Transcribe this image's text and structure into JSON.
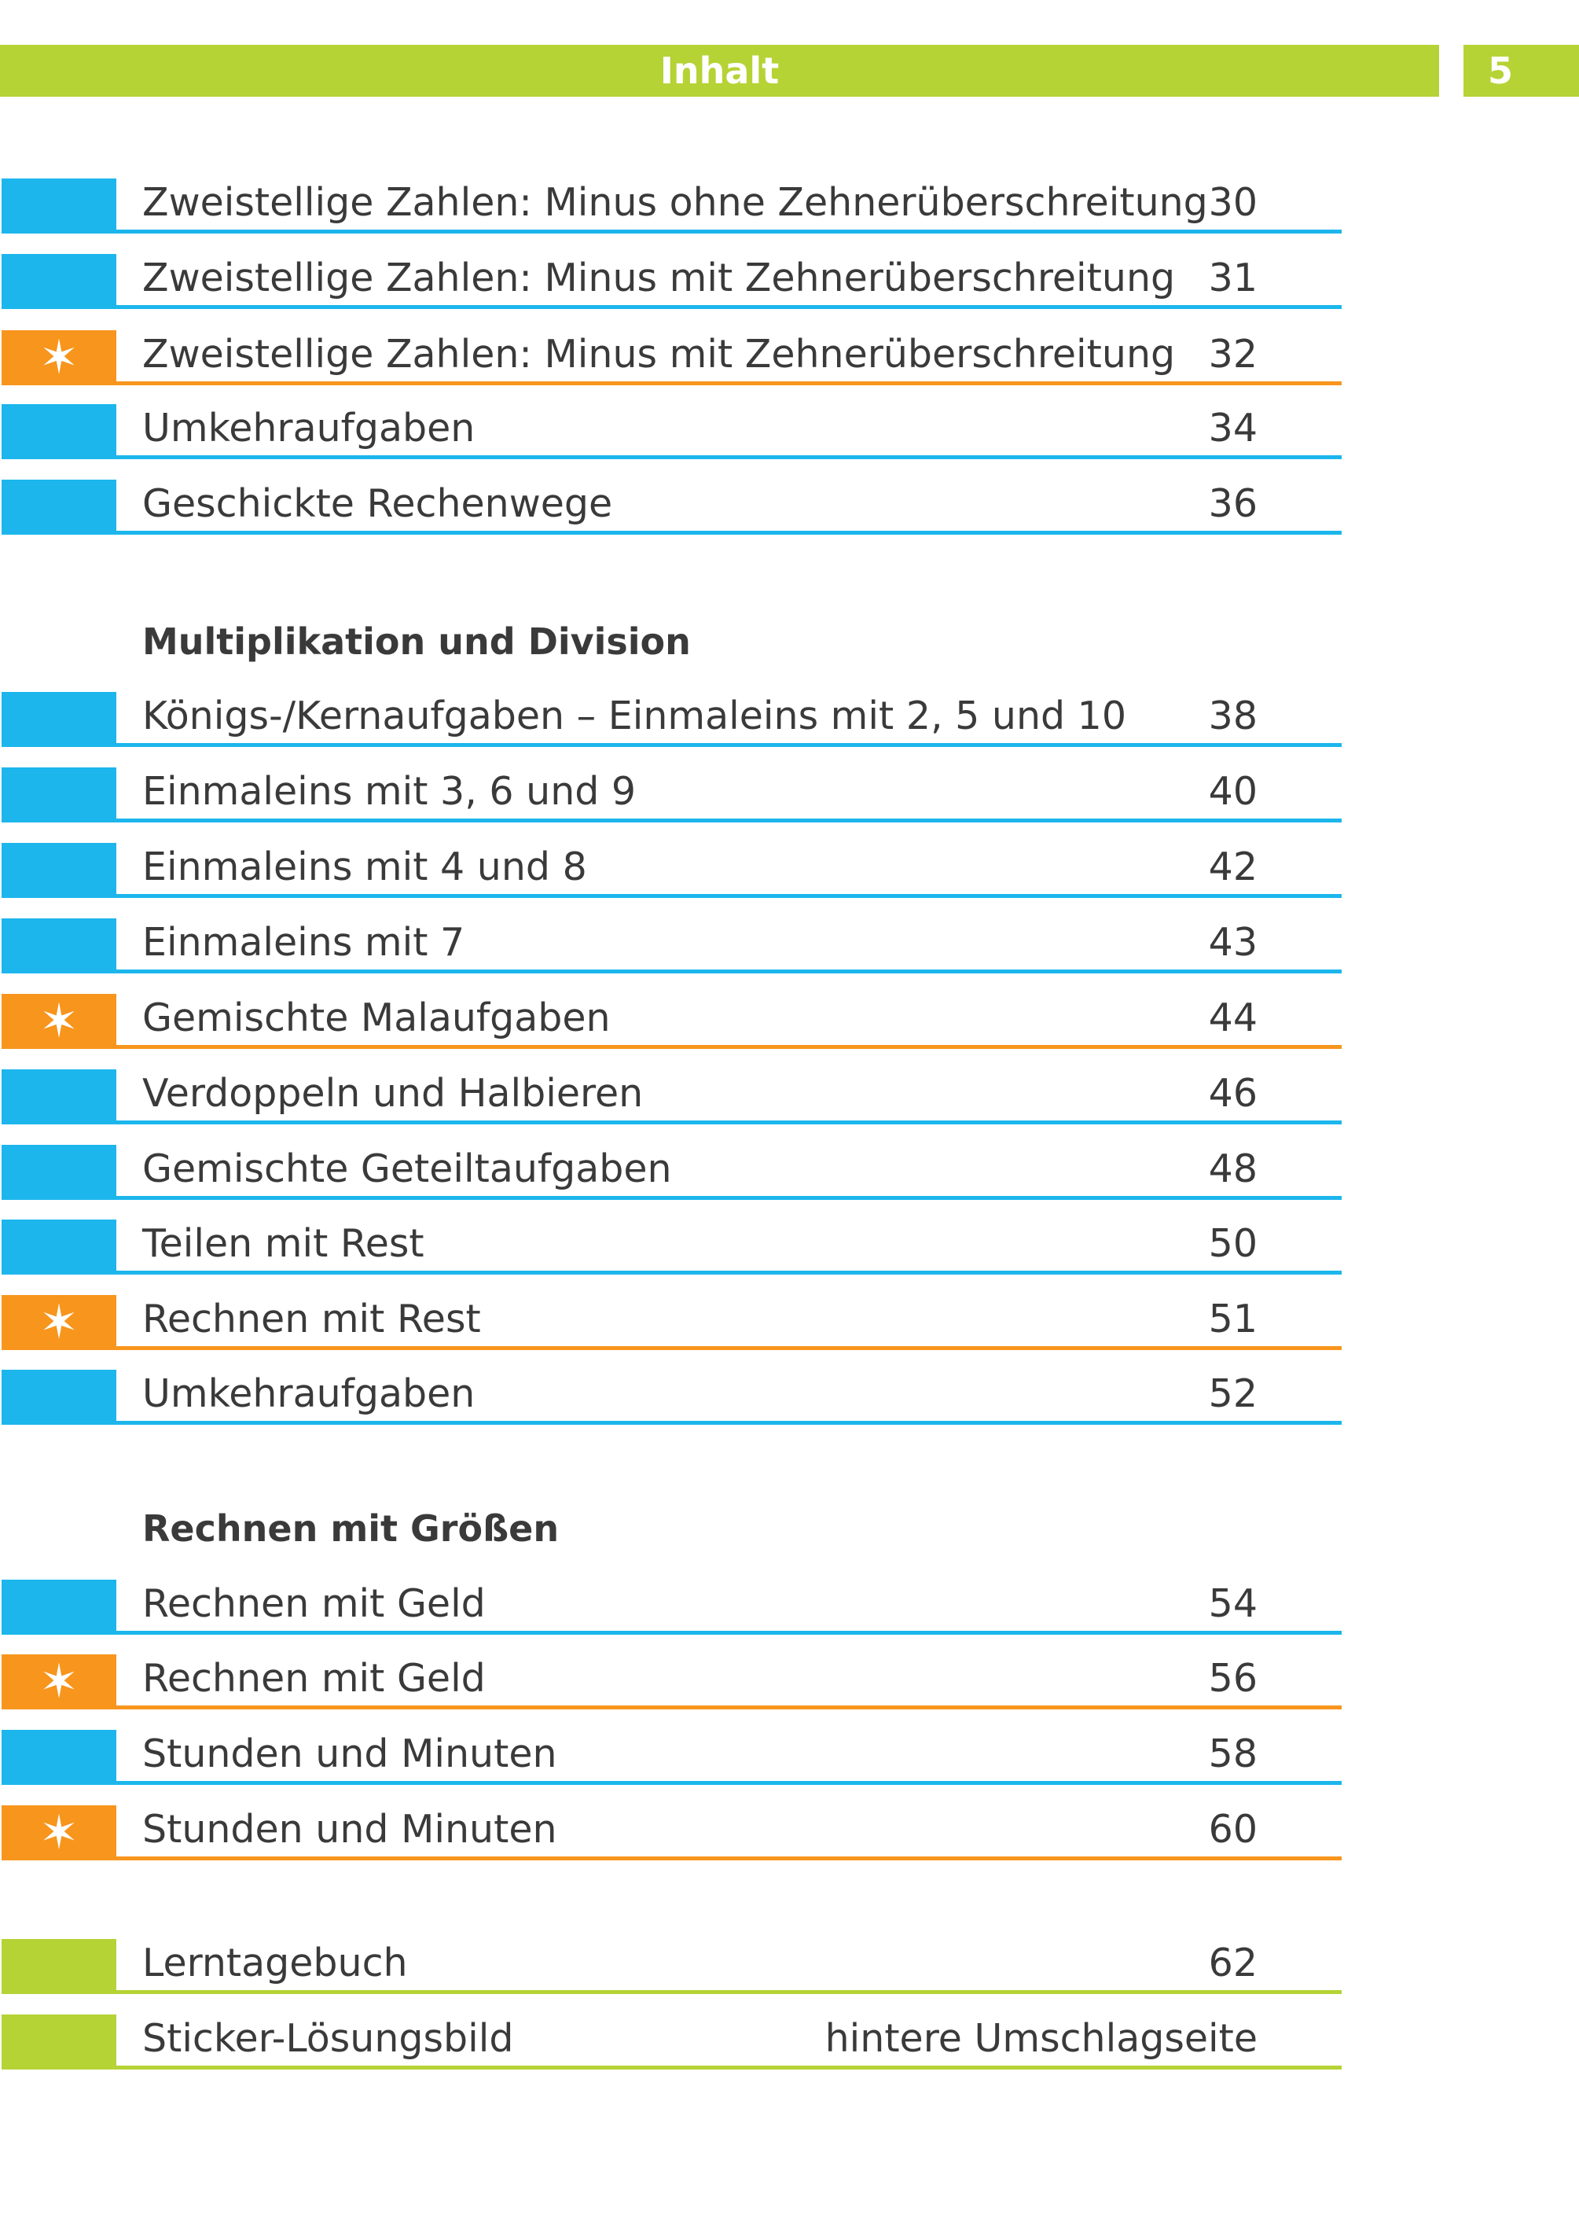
{
  "header": {
    "title": "Inhalt",
    "page_number": "5"
  },
  "colors": {
    "green": "#b5d335",
    "blue": "#1cb6ec",
    "orange": "#f7951d",
    "text": "#3a3a3a"
  },
  "marker_star": "✶",
  "group1": [
    {
      "label": "Zweistellige Zahlen: Minus ohne Zehnerüberschreitung",
      "page": "30",
      "marker": "blue"
    },
    {
      "label": "Zweistellige Zahlen: Minus mit Zehnerüberschreitung",
      "page": "31",
      "marker": "blue"
    },
    {
      "label": "Zweistellige Zahlen: Minus mit Zehnerüberschreitung",
      "page": "32",
      "marker": "orange-star"
    },
    {
      "label": "Umkehraufgaben",
      "page": "34",
      "marker": "blue"
    },
    {
      "label": "Geschickte Rechenwege",
      "page": "36",
      "marker": "blue"
    }
  ],
  "section2": {
    "heading": "Multiplikation und Division",
    "items": [
      {
        "label": "Königs-/Kernaufgaben – Einmaleins mit 2, 5 und 10",
        "page": "38",
        "marker": "blue"
      },
      {
        "label": "Einmaleins mit 3, 6 und 9",
        "page": "40",
        "marker": "blue"
      },
      {
        "label": "Einmaleins mit 4 und 8",
        "page": "42",
        "marker": "blue"
      },
      {
        "label": "Einmaleins mit 7",
        "page": "43",
        "marker": "blue"
      },
      {
        "label": "Gemischte Malaufgaben",
        "page": "44",
        "marker": "orange-star"
      },
      {
        "label": "Verdoppeln und Halbieren",
        "page": "46",
        "marker": "blue"
      },
      {
        "label": "Gemischte Geteiltaufgaben",
        "page": "48",
        "marker": "blue"
      },
      {
        "label": "Teilen mit Rest",
        "page": "50",
        "marker": "blue"
      },
      {
        "label": "Rechnen mit Rest",
        "page": "51",
        "marker": "orange-star"
      },
      {
        "label": "Umkehraufgaben",
        "page": "52",
        "marker": "blue"
      }
    ]
  },
  "section3": {
    "heading": "Rechnen mit Größen",
    "items": [
      {
        "label": "Rechnen mit Geld",
        "page": "54",
        "marker": "blue"
      },
      {
        "label": "Rechnen mit Geld",
        "page": "56",
        "marker": "orange-star"
      },
      {
        "label": "Stunden und Minuten",
        "page": "58",
        "marker": "blue"
      },
      {
        "label": "Stunden und Minuten",
        "page": "60",
        "marker": "orange-star"
      }
    ]
  },
  "extras": [
    {
      "label": "Lerntagebuch",
      "page": "62",
      "marker": "green"
    },
    {
      "label": "Sticker-Lösungsbild",
      "page": "hintere Umschlagseite",
      "marker": "green"
    }
  ]
}
